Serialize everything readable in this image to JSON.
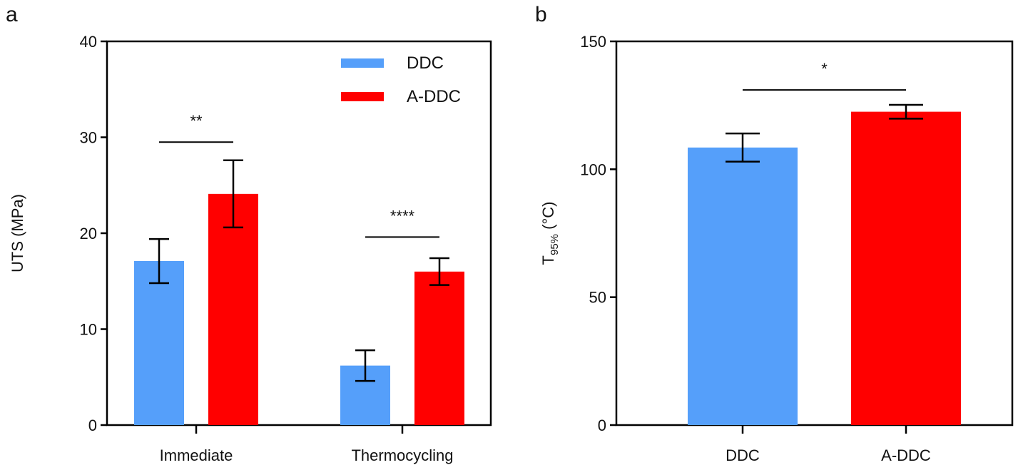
{
  "colors": {
    "DDC": "#559ffa",
    "A-DDC": "#ff0000"
  },
  "chart_data": [
    {
      "panel": "a",
      "type": "bar",
      "categories": [
        "Immediate",
        "Thermocycling"
      ],
      "series": [
        {
          "name": "DDC",
          "values": [
            17.1,
            6.2
          ],
          "errors": [
            2.3,
            1.6
          ]
        },
        {
          "name": "A-DDC",
          "values": [
            24.1,
            16.0
          ],
          "errors": [
            3.5,
            1.4
          ]
        }
      ],
      "ylabel": "UTS (MPa)",
      "ylim": [
        0,
        40
      ],
      "yticks": [
        0,
        10,
        20,
        30,
        40
      ],
      "legend": "top-right",
      "grid": false,
      "significance": [
        {
          "category": 0,
          "label": "**",
          "level": 29.5
        },
        {
          "category": 1,
          "label": "****",
          "level": 19.6
        }
      ]
    },
    {
      "panel": "b",
      "type": "bar",
      "categories": [
        "DDC",
        "A-DDC"
      ],
      "series": [
        {
          "values": [
            108.5,
            122.5
          ],
          "errors": [
            5.5,
            2.7
          ]
        }
      ],
      "ylabel_main": "T",
      "ylabel_sub": "95%",
      "ylabel_tail": " (°C)",
      "ylim": [
        0,
        150
      ],
      "yticks": [
        0,
        50,
        100,
        150
      ],
      "grid": false,
      "significance": [
        {
          "from": 0,
          "to": 1,
          "label": "*",
          "level": 131
        }
      ]
    }
  ]
}
